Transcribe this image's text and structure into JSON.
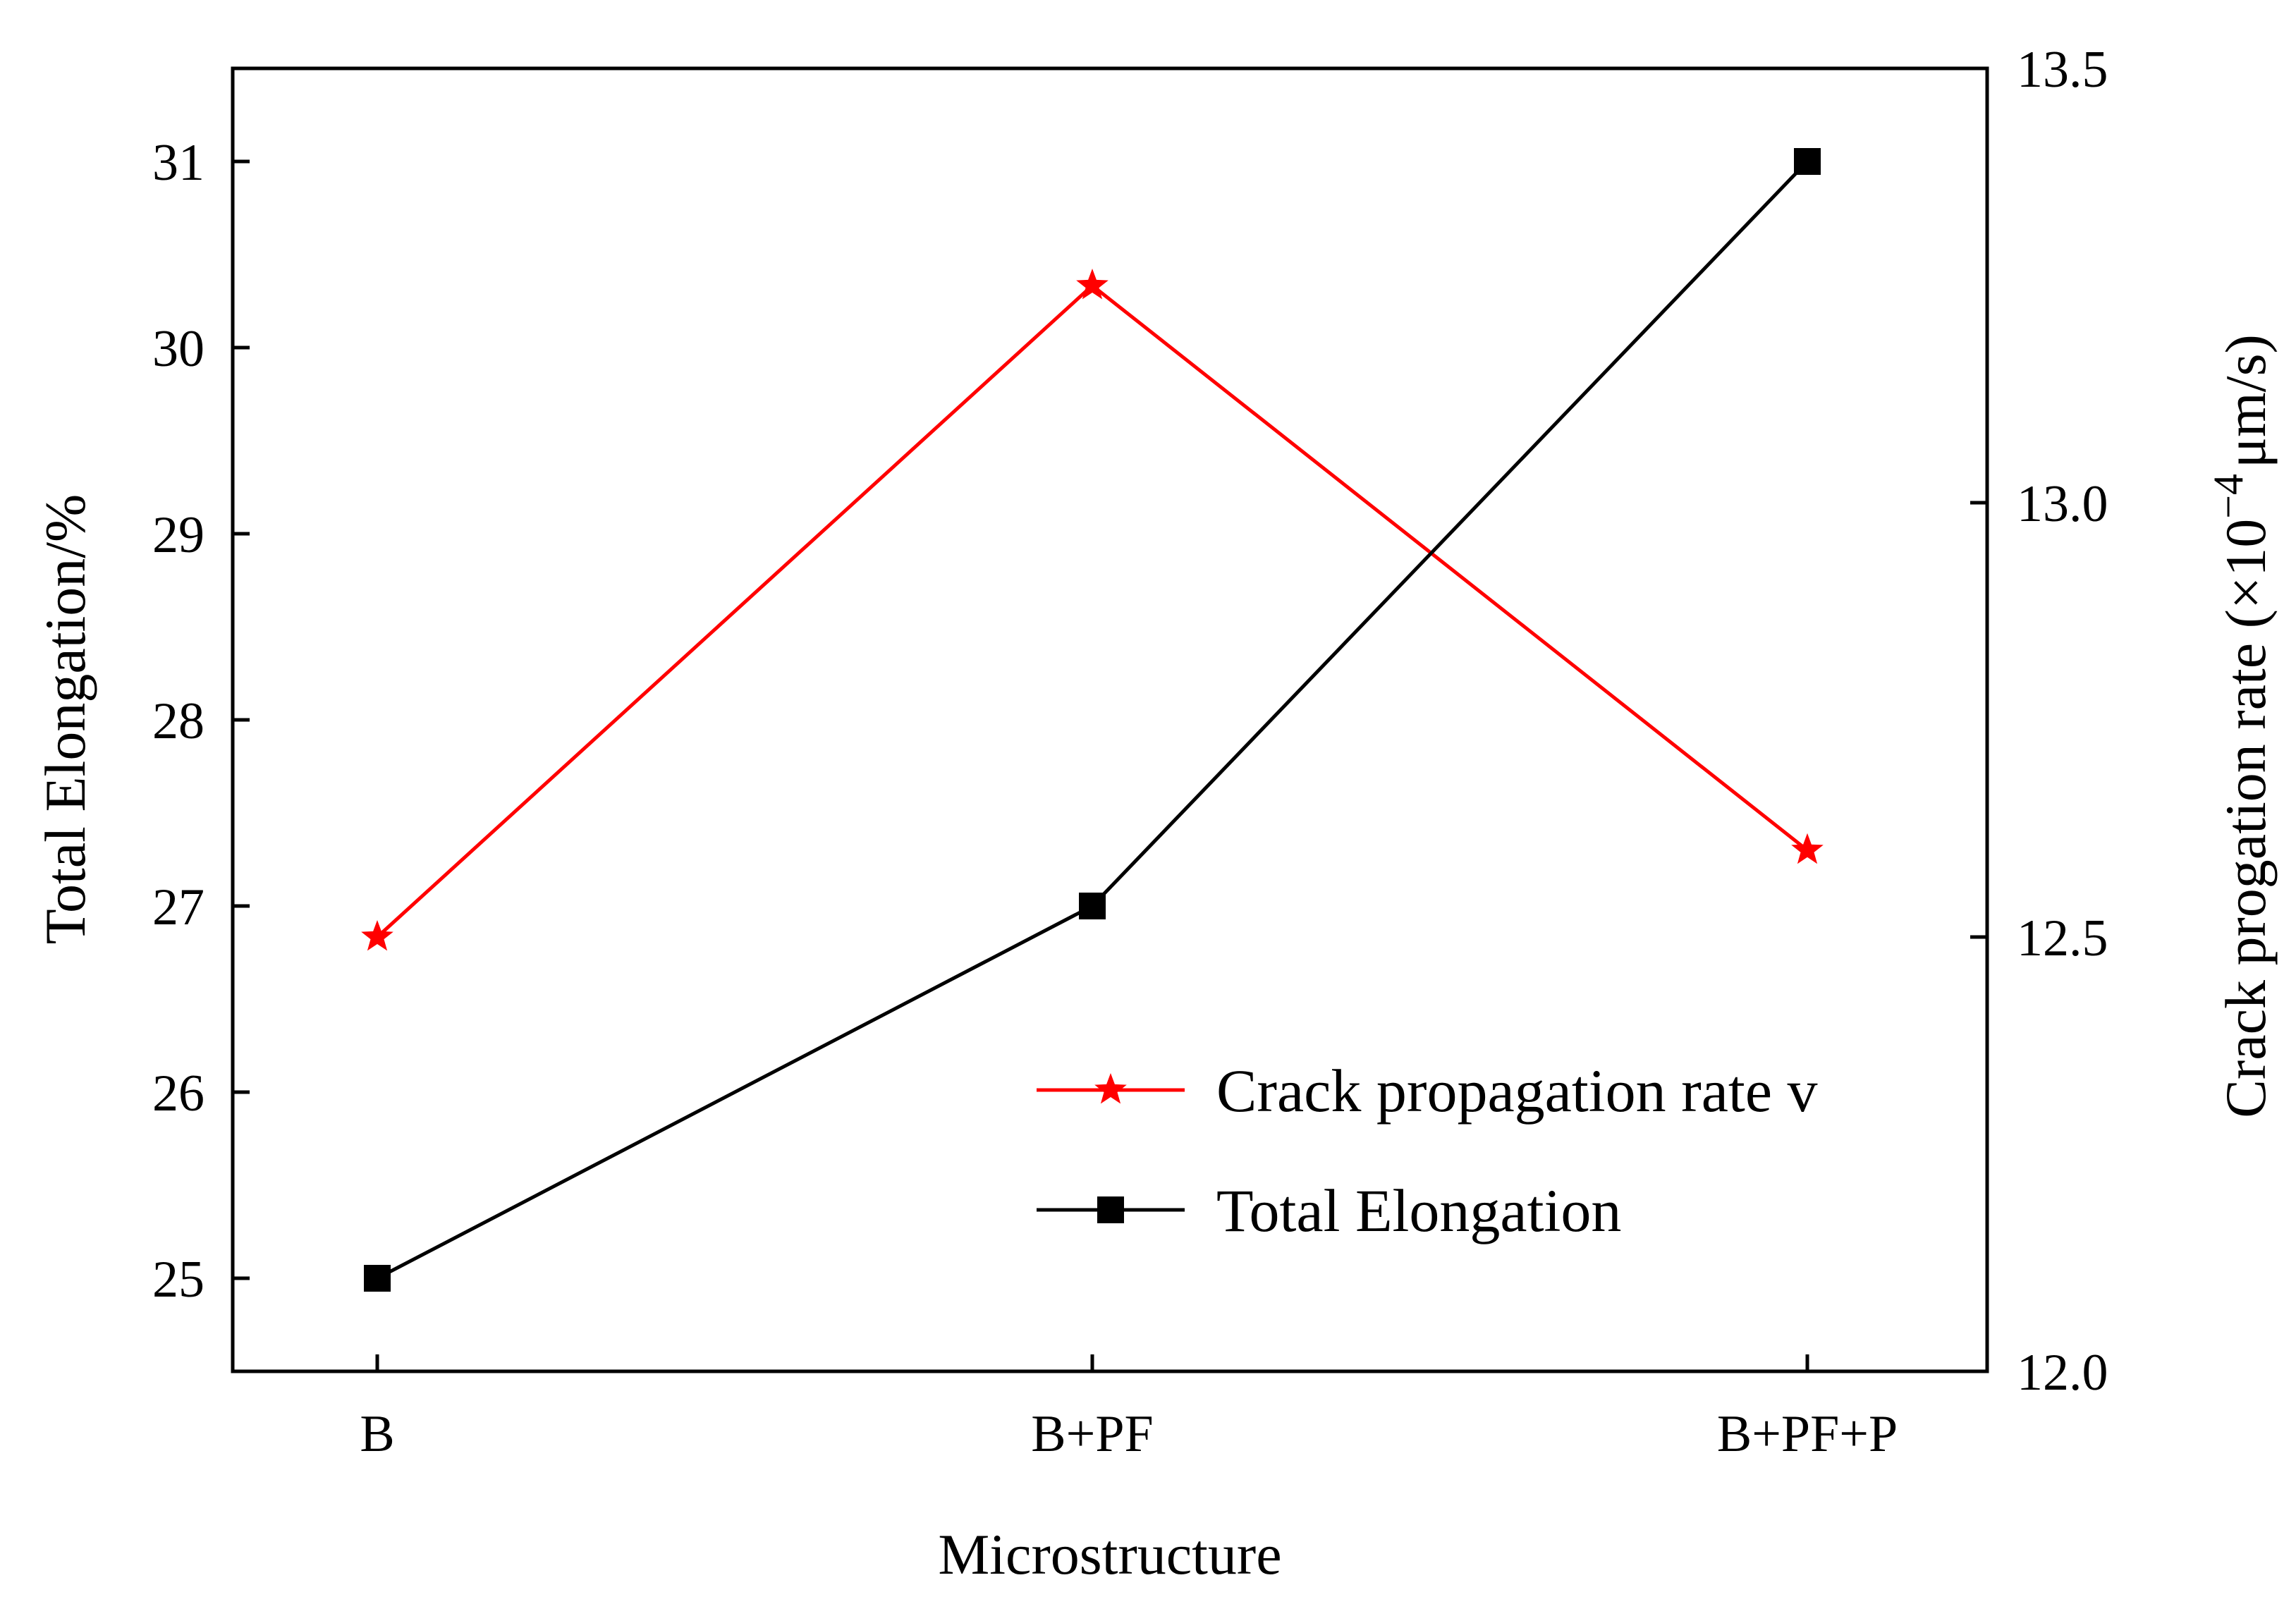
{
  "chart_data": {
    "type": "line",
    "categories": [
      "B",
      "B+PF",
      "B+PF+P"
    ],
    "xlabel": "Microstructure",
    "ylabel_left": "Total Elongation/%",
    "ylabel_right_prefix": "Crack progation rate (×10",
    "ylabel_right_exp": "−4",
    "ylabel_right_suffix": "μm/s)",
    "ylim_left": [
      24.5,
      31.5
    ],
    "ylim_right": [
      12.0,
      13.5
    ],
    "yticks_left": [
      25,
      26,
      27,
      28,
      29,
      30,
      31
    ],
    "yticks_right": [
      "12.0",
      "12.5",
      "13.0",
      "13.5"
    ],
    "grid": false,
    "legend_position": "lower-right",
    "series": [
      {
        "name": "Crack propagation rate v",
        "axis": "right",
        "marker": "star",
        "color": "#ff0000",
        "values": [
          12.5,
          13.25,
          12.6
        ]
      },
      {
        "name": "Total Elongation",
        "axis": "left",
        "marker": "square",
        "color": "#000000",
        "values": [
          25.0,
          27.0,
          31.0
        ]
      }
    ]
  }
}
